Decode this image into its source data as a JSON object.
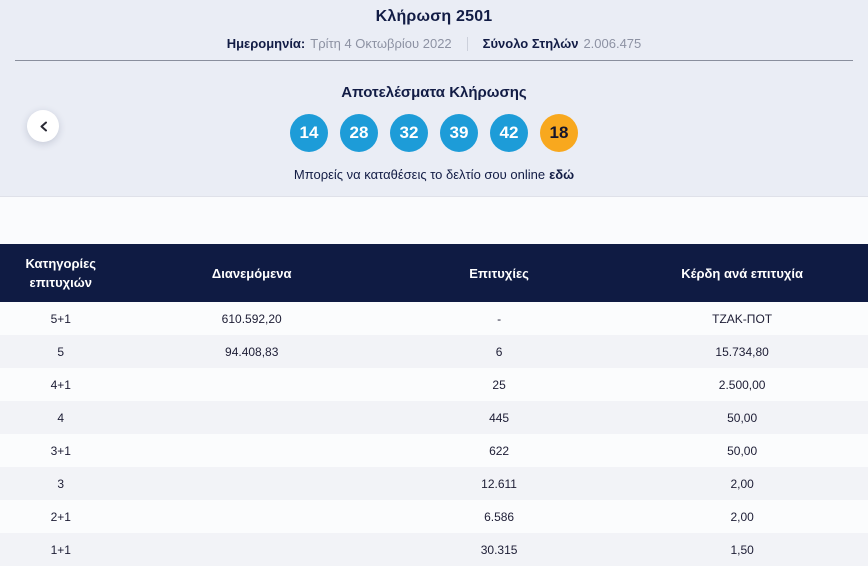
{
  "header": {
    "draw_title": "Κλήρωση 2501",
    "date_label": "Ημερομηνία:",
    "date_value": "Τρίτη 4 Οκτωβρίου 2022",
    "columns_label": "Σύνολο Στηλών",
    "columns_value": "2.006.475"
  },
  "results": {
    "title": "Αποτελέσματα Κλήρωσης",
    "numbers": [
      "14",
      "28",
      "32",
      "39",
      "42"
    ],
    "bonus": "18",
    "cta_text": "Μπορείς να καταθέσεις το δελτίο σου online",
    "cta_link_label": "εδώ"
  },
  "colors": {
    "ball_blue": "#1d9cd8",
    "ball_bonus_orange": "#f8a81e",
    "header_navy": "#0f1b43"
  },
  "table": {
    "headers": [
      "Κατηγορίες επιτυχιών",
      "Διανεμόμενα",
      "Επιτυχίες",
      "Κέρδη ανά επιτυχία"
    ],
    "rows": [
      {
        "category": "5+1",
        "distributed": "610.592,20",
        "winners": "-",
        "prize": "ΤΖΑΚ-ΠΟΤ"
      },
      {
        "category": "5",
        "distributed": "94.408,83",
        "winners": "6",
        "prize": "15.734,80"
      },
      {
        "category": "4+1",
        "distributed": "",
        "winners": "25",
        "prize": "2.500,00"
      },
      {
        "category": "4",
        "distributed": "",
        "winners": "445",
        "prize": "50,00"
      },
      {
        "category": "3+1",
        "distributed": "",
        "winners": "622",
        "prize": "50,00"
      },
      {
        "category": "3",
        "distributed": "",
        "winners": "12.611",
        "prize": "2,00"
      },
      {
        "category": "2+1",
        "distributed": "",
        "winners": "6.586",
        "prize": "2,00"
      },
      {
        "category": "1+1",
        "distributed": "",
        "winners": "30.315",
        "prize": "1,50"
      }
    ]
  }
}
